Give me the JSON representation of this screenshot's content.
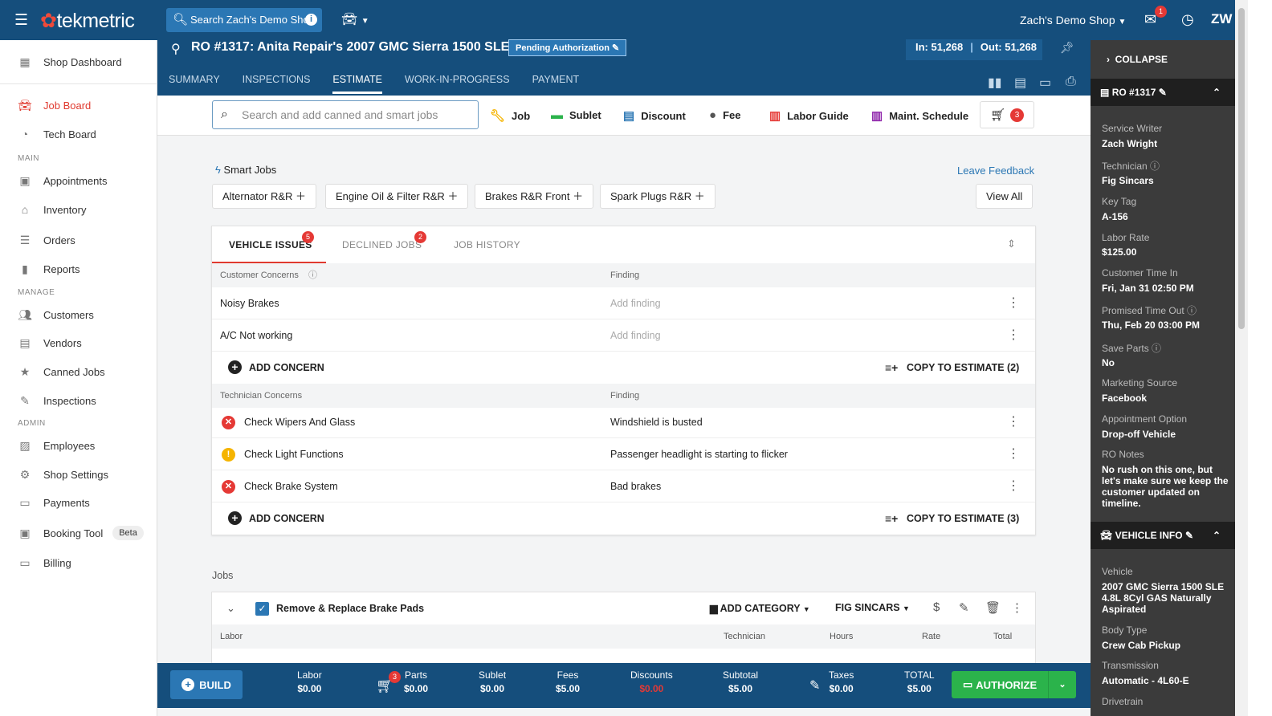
{
  "topbar": {
    "brand": "tekmetric",
    "search_placeholder": "Search Zach's Demo Shop",
    "shop_name": "Zach's Demo Shop",
    "message_badge": "1",
    "user_initials": "ZW"
  },
  "sidebar": {
    "dashboard": "Shop Dashboard",
    "job_board": "Job Board",
    "tech_board": "Tech Board",
    "section_main": "MAIN",
    "appointments": "Appointments",
    "inventory": "Inventory",
    "orders": "Orders",
    "reports": "Reports",
    "section_manage": "MANAGE",
    "customers": "Customers",
    "vendors": "Vendors",
    "canned_jobs": "Canned Jobs",
    "inspections": "Inspections",
    "section_admin": "ADMIN",
    "employees": "Employees",
    "shop_settings": "Shop Settings",
    "payments": "Payments",
    "booking_tool": "Booking Tool",
    "beta": "Beta",
    "billing": "Billing"
  },
  "ro": {
    "title": "RO #1317: Anita Repair's 2007 GMC Sierra 1500 SLE",
    "status": "Pending Authorization",
    "mileage_in": "In: 51,268",
    "mileage_out": "Out: 51,268",
    "tabs": [
      "SUMMARY",
      "INSPECTIONS",
      "ESTIMATE",
      "WORK-IN-PROGRESS",
      "PAYMENT"
    ],
    "active_tab": "ESTIMATE"
  },
  "toolbar": {
    "search_placeholder": "Search and add canned and smart jobs",
    "job": "Job",
    "sublet": "Sublet",
    "discount": "Discount",
    "fee": "Fee",
    "labor_guide": "Labor Guide",
    "maint_schedule": "Maint. Schedule",
    "cart_count": "3"
  },
  "smart_jobs": {
    "label": "Smart Jobs",
    "feedback": "Leave Feedback",
    "chips": [
      "Alternator R&R",
      "Engine Oil & Filter R&R",
      "Brakes R&R Front",
      "Spark Plugs R&R"
    ],
    "view_all": "View All"
  },
  "issues": {
    "tabs": {
      "vehicle_issues": "VEHICLE ISSUES",
      "declined_jobs": "DECLINED JOBS",
      "job_history": "JOB HISTORY"
    },
    "vehicle_badge": "5",
    "declined_badge": "2",
    "customer_header": "Customer Concerns",
    "finding_header": "Finding",
    "customer_rows": [
      {
        "concern": "Noisy Brakes",
        "finding": "Add finding"
      },
      {
        "concern": "A/C Not working",
        "finding": "Add finding"
      }
    ],
    "add_concern": "ADD CONCERN",
    "copy_customer": "COPY TO ESTIMATE (2)",
    "technician_header": "Technician Concerns",
    "tech_rows": [
      {
        "concern": "Check Wipers And Glass",
        "finding": "Windshield is busted",
        "status_color": "#e53935"
      },
      {
        "concern": "Check Light Functions",
        "finding": "Passenger headlight is starting to flicker",
        "status_color": "#f5b400"
      },
      {
        "concern": "Check Brake System",
        "finding": "Bad brakes",
        "status_color": "#e53935"
      }
    ],
    "copy_tech": "COPY TO ESTIMATE (3)"
  },
  "jobs": {
    "label": "Jobs",
    "job_name": "Remove & Replace Brake Pads",
    "add_category": "ADD CATEGORY",
    "technician": "FIG SINCARS",
    "columns": [
      "Labor",
      "Technician",
      "Hours",
      "Rate",
      "Total"
    ]
  },
  "totals": {
    "build": "BUILD",
    "labor_label": "Labor",
    "labor": "$0.00",
    "parts_label": "Parts",
    "parts": "$0.00",
    "parts_badge": "3",
    "sublet_label": "Sublet",
    "sublet": "$0.00",
    "fees_label": "Fees",
    "fees": "$5.00",
    "discounts_label": "Discounts",
    "discounts": "$0.00",
    "subtotal_label": "Subtotal",
    "subtotal": "$5.00",
    "taxes_label": "Taxes",
    "taxes": "$0.00",
    "total_label": "TOTAL",
    "total": "$5.00",
    "authorize": "AUTHORIZE"
  },
  "right_panel": {
    "collapse": "COLLAPSE",
    "ro_header": "RO #1317",
    "fields": [
      {
        "label": "Service Writer",
        "value": "Zach Wright"
      },
      {
        "label": "Technician",
        "value": "Fig Sincars"
      },
      {
        "label": "Key Tag",
        "value": "A-156"
      },
      {
        "label": "Labor Rate",
        "value": "$125.00"
      },
      {
        "label": "Customer Time In",
        "value": "Fri, Jan 31 02:50 PM"
      },
      {
        "label": "Promised Time Out",
        "value": "Thu, Feb 20 03:00 PM"
      },
      {
        "label": "Save Parts",
        "value": "No"
      },
      {
        "label": "Marketing Source",
        "value": "Facebook"
      },
      {
        "label": "Appointment Option",
        "value": "Drop-off Vehicle"
      },
      {
        "label": "RO Notes",
        "value": "No rush on this one, but let's make sure we keep the customer updated on timeline."
      }
    ],
    "vehicle_header": "VEHICLE INFO",
    "vehicle_fields": [
      {
        "label": "Vehicle",
        "value": "2007 GMC Sierra 1500 SLE 4.8L 8Cyl GAS Naturally Aspirated"
      },
      {
        "label": "Body Type",
        "value": "Crew Cab Pickup"
      },
      {
        "label": "Transmission",
        "value": "Automatic - 4L60-E"
      },
      {
        "label": "Drivetrain",
        "value": ""
      }
    ]
  }
}
